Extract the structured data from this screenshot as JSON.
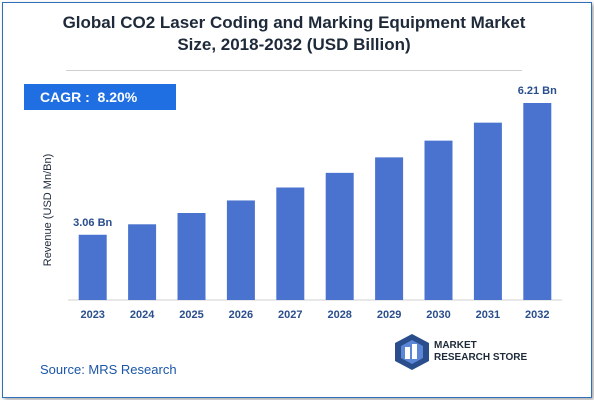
{
  "title_line1": "Global CO2 Laser Coding and Marking Equipment Market",
  "title_line2": "Size, 2018-2032 (USD Billion)",
  "cagr_text": "CAGR :  8.20%",
  "source": "Source: MRS Research",
  "logo": {
    "line1": "MARKET",
    "line2": "RESEARCH STORE"
  },
  "colors": {
    "bar": "#4a73cf",
    "cagr_box": "#1f6fe3",
    "label": "#2a4e8c",
    "frame": "#2f6fb5"
  },
  "chart_data": {
    "type": "bar",
    "title": "Global CO2 Laser Coding and Marking Equipment Market Size, 2018-2032 (USD Billion)",
    "ylabel": "Revenue (USD Mn/Bn)",
    "xlabel": "",
    "categories": [
      "2023",
      "2024",
      "2025",
      "2026",
      "2027",
      "2028",
      "2029",
      "2030",
      "2031",
      "2032"
    ],
    "values": [
      3.06,
      3.31,
      3.58,
      3.88,
      4.19,
      4.54,
      4.91,
      5.31,
      5.74,
      6.21
    ],
    "data_labels": [
      {
        "index": 0,
        "text": "3.06 Bn"
      },
      {
        "index": 9,
        "text": "6.21 Bn"
      }
    ],
    "ylim": [
      1.5,
      6.21
    ],
    "grid": false,
    "legend": "none"
  }
}
